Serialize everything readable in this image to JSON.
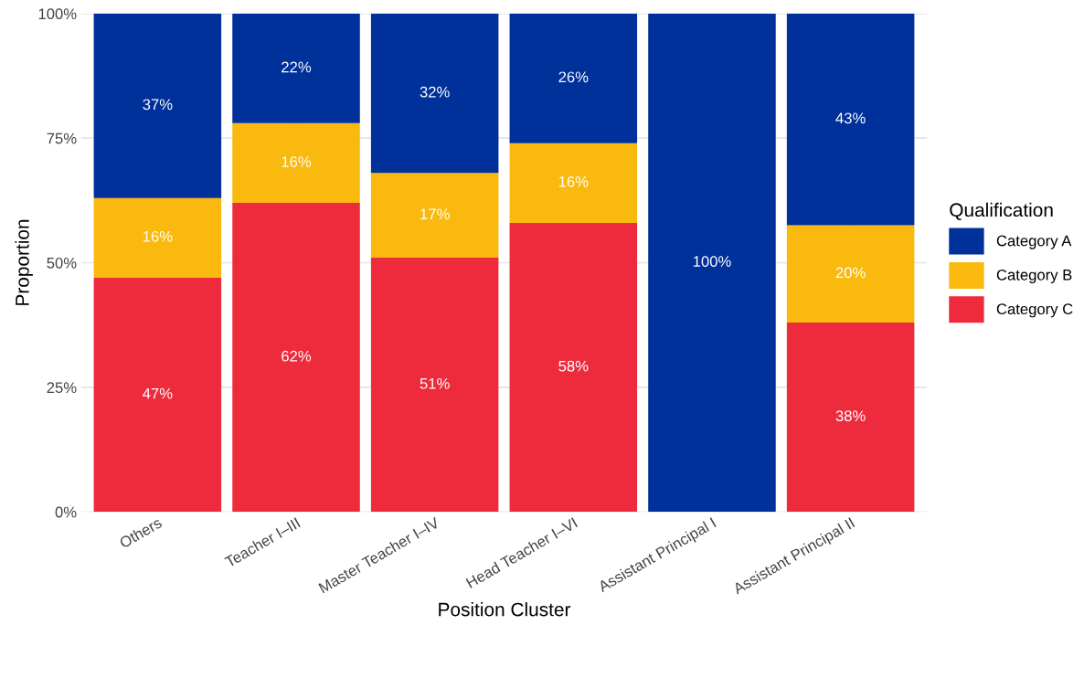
{
  "chart_data": {
    "type": "bar",
    "stacked": true,
    "xlabel": "Position Cluster",
    "ylabel": "Proportion",
    "legend_title": "Qualification",
    "legend": "right",
    "grid": true,
    "categories": [
      "Others",
      "Teacher I–III",
      "Master Teacher I–IV",
      "Head Teacher I–VI",
      "Assistant Principal I",
      "Assistant Principal II"
    ],
    "ylim": [
      0,
      100
    ],
    "yticks": [
      {
        "value": 0,
        "label": "0%"
      },
      {
        "value": 25,
        "label": "25%"
      },
      {
        "value": 50,
        "label": "50%"
      },
      {
        "value": 75,
        "label": "75%"
      },
      {
        "value": 100,
        "label": "100%"
      }
    ],
    "series": [
      {
        "name": "Category C",
        "color": "#ee2b3c",
        "values": [
          47,
          62,
          51,
          58,
          0,
          38
        ],
        "value_labels": [
          "47%",
          "62%",
          "51%",
          "58%",
          null,
          "38%"
        ]
      },
      {
        "name": "Category B",
        "color": "#f9b90e",
        "values": [
          16,
          16,
          17,
          16,
          0,
          19.5
        ],
        "value_labels": [
          "16%",
          "16%",
          "17%",
          "16%",
          null,
          "20%"
        ]
      },
      {
        "name": "Category A",
        "color": "#00309a",
        "values": [
          37,
          22,
          32,
          26,
          100,
          42.5
        ],
        "value_labels": [
          "37%",
          "22%",
          "32%",
          "26%",
          "100%",
          "43%"
        ]
      }
    ]
  }
}
